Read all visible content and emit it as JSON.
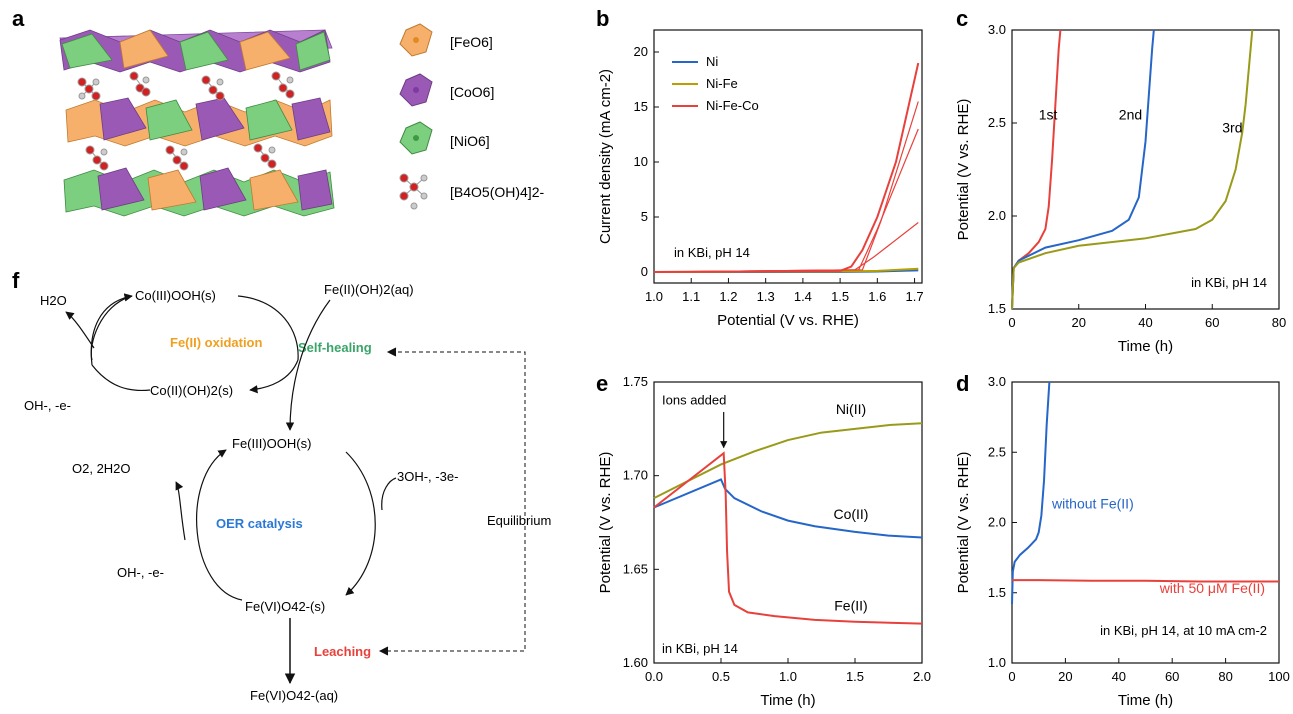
{
  "panels": {
    "a": "a",
    "b": "b",
    "c": "c",
    "d": "d",
    "e": "e",
    "f": "f"
  },
  "legend_a": [
    {
      "label": "[FeO6]",
      "sub": "6",
      "color": "#f4a55b"
    },
    {
      "label": "[CoO6]",
      "sub": "6",
      "color": "#9b59b6"
    },
    {
      "label": "[NiO6]",
      "sub": "6",
      "color": "#6cc46f"
    },
    {
      "label": "[B4O5(OH)4]2-"
    }
  ],
  "colors": {
    "red": "#e8413c",
    "blue": "#2566c8",
    "olive": "#9a9a1a",
    "fe_green": "#3aa46a",
    "orange": "#f0a020",
    "oer_blue": "#2a78d8"
  },
  "diagram_f": {
    "h2o": "H2O",
    "co_iii": "Co(III)OOH(s)",
    "fe_ii_aq": "Fe(II)(OH)2(aq)",
    "fe_oxidation": "Fe(II) oxidation",
    "self_healing": "Self-healing",
    "oh_e_1": "OH-, -e-",
    "co_ii": "Co(II)(OH)2(s)",
    "fe_iii": "Fe(III)OOH(s)",
    "o2": "O2, 2H2O",
    "three_oh": "3OH-, -3e-",
    "oer": "OER catalysis",
    "equilibrium": "Equilibrium",
    "oh_e_2": "OH-, -e-",
    "fe_vi_s": "Fe(VI)O42-(s)",
    "leaching": "Leaching",
    "fe_vi_aq": "Fe(VI)O42-(aq)"
  },
  "chart_data": [
    {
      "id": "b",
      "type": "line",
      "xlabel": "Potential (V vs. RHE)",
      "ylabel": "Current density (mA cm-2)",
      "xlim": [
        1.0,
        1.72
      ],
      "ylim": [
        -1,
        22
      ],
      "xticks": [
        1.0,
        1.1,
        1.2,
        1.3,
        1.4,
        1.5,
        1.6,
        1.7
      ],
      "yticks": [
        0,
        5,
        10,
        15,
        20
      ],
      "annotation": "in KBi, pH 14",
      "series": [
        {
          "name": "Ni",
          "color": "#2566c8",
          "x": [
            1.0,
            1.5,
            1.6,
            1.71
          ],
          "y": [
            0,
            0,
            0.05,
            0.15
          ]
        },
        {
          "name": "Ni-Fe",
          "color": "#b8a000",
          "x": [
            1.0,
            1.5,
            1.6,
            1.71
          ],
          "y": [
            0,
            0.05,
            0.1,
            0.3
          ]
        },
        {
          "name": "Ni-Fe-Co",
          "color": "#e8413c",
          "x": [
            1.0,
            1.5,
            1.53,
            1.56,
            1.6,
            1.65,
            1.71
          ],
          "y": [
            0,
            0.1,
            0.5,
            2,
            5,
            10,
            19
          ]
        }
      ]
    },
    {
      "id": "c",
      "type": "line",
      "xlabel": "Time (h)",
      "ylabel": "Potential (V vs. RHE)",
      "xlim": [
        0,
        80
      ],
      "ylim": [
        1.5,
        3.0
      ],
      "xticks": [
        0,
        20,
        40,
        60,
        80
      ],
      "yticks": [
        1.5,
        2.0,
        2.5,
        3.0
      ],
      "annotation": "in KBi, pH 14",
      "series": [
        {
          "name": "1st",
          "color": "#e8413c",
          "x": [
            0,
            0.5,
            2,
            5,
            8,
            10,
            11,
            12,
            13,
            14,
            14.5
          ],
          "y": [
            1.5,
            1.72,
            1.76,
            1.8,
            1.86,
            1.93,
            2.05,
            2.3,
            2.6,
            2.9,
            3.0
          ]
        },
        {
          "name": "2nd",
          "color": "#2566c8",
          "x": [
            0,
            0.5,
            2,
            10,
            20,
            30,
            35,
            38,
            40,
            41,
            42,
            42.5
          ],
          "y": [
            1.5,
            1.72,
            1.76,
            1.83,
            1.87,
            1.92,
            1.98,
            2.1,
            2.4,
            2.65,
            2.9,
            3.0
          ]
        },
        {
          "name": "3rd",
          "color": "#9a9a1a",
          "x": [
            0,
            0.5,
            2,
            10,
            20,
            40,
            55,
            60,
            64,
            67,
            69,
            70,
            71,
            72
          ],
          "y": [
            1.5,
            1.72,
            1.75,
            1.8,
            1.84,
            1.88,
            1.93,
            1.98,
            2.08,
            2.25,
            2.45,
            2.6,
            2.8,
            3.0
          ]
        }
      ]
    },
    {
      "id": "e",
      "type": "line",
      "xlabel": "Time (h)",
      "ylabel": "Potential (V vs. RHE)",
      "xlim": [
        0,
        2.0
      ],
      "ylim": [
        1.6,
        1.75
      ],
      "xticks": [
        0.0,
        0.5,
        1.0,
        1.5,
        2.0
      ],
      "yticks": [
        1.6,
        1.65,
        1.7,
        1.75
      ],
      "annotation": "in KBi, pH 14",
      "arrow_label": "Ions added",
      "series": [
        {
          "name": "Ni(II)",
          "color": "#9a9a1a",
          "x": [
            0,
            0.25,
            0.5,
            0.75,
            1.0,
            1.25,
            1.5,
            1.75,
            2.0
          ],
          "y": [
            1.688,
            1.697,
            1.706,
            1.713,
            1.719,
            1.723,
            1.725,
            1.727,
            1.728
          ]
        },
        {
          "name": "Co(II)",
          "color": "#2566c8",
          "x": [
            0,
            0.5,
            0.53,
            0.6,
            0.8,
            1.0,
            1.2,
            1.5,
            1.75,
            2.0
          ],
          "y": [
            1.683,
            1.698,
            1.693,
            1.688,
            1.681,
            1.676,
            1.673,
            1.67,
            1.668,
            1.667
          ]
        },
        {
          "name": "Fe(II)",
          "color": "#e8413c",
          "x": [
            0,
            0.52,
            0.535,
            0.545,
            0.56,
            0.6,
            0.7,
            0.9,
            1.2,
            1.5,
            2.0
          ],
          "y": [
            1.683,
            1.712,
            1.69,
            1.66,
            1.638,
            1.631,
            1.627,
            1.625,
            1.623,
            1.622,
            1.621
          ]
        }
      ]
    },
    {
      "id": "d",
      "type": "line",
      "xlabel": "Time (h)",
      "ylabel": "Potential (V vs. RHE)",
      "xlim": [
        0,
        100
      ],
      "ylim": [
        1.0,
        3.0
      ],
      "xticks": [
        0,
        20,
        40,
        60,
        80,
        100
      ],
      "yticks": [
        1.0,
        1.5,
        2.0,
        2.5,
        3.0
      ],
      "annotation": "in KBi, pH 14, at 10 mA cm-2",
      "series": [
        {
          "name": "without Fe(II)",
          "color": "#2566c8",
          "x": [
            0,
            0.3,
            1,
            3,
            6,
            9,
            10,
            11,
            12,
            13,
            14
          ],
          "y": [
            1.42,
            1.65,
            1.72,
            1.77,
            1.82,
            1.88,
            1.93,
            2.05,
            2.3,
            2.7,
            3.0
          ]
        },
        {
          "name": "with 50 μM Fe(II)",
          "color": "#e8413c",
          "x": [
            0,
            10,
            30,
            50,
            70,
            90,
            100
          ],
          "y": [
            1.59,
            1.59,
            1.585,
            1.585,
            1.58,
            1.58,
            1.58
          ]
        }
      ]
    }
  ]
}
